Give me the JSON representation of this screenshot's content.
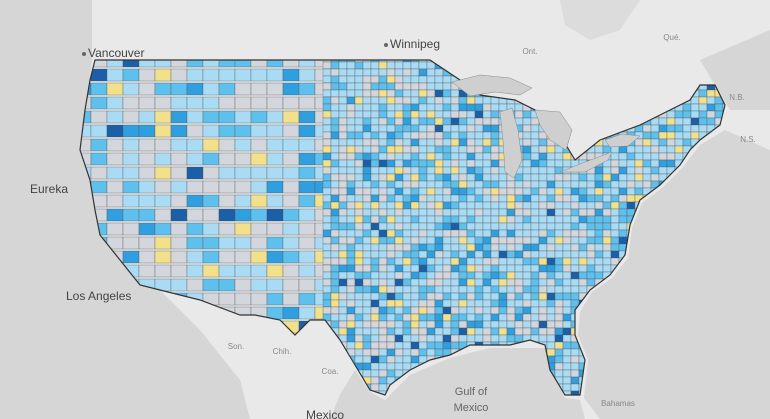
{
  "labels": [
    "Vancouver",
    "Winnipeg",
    "Ont.",
    "Qué.",
    "N.B.",
    "N.S.",
    "Eureka",
    "Los Angeles",
    "Son.",
    "Chih.",
    "Coa.",
    "Gulf of",
    "Mexico",
    "Bahamas",
    "Mexico"
  ]
}
